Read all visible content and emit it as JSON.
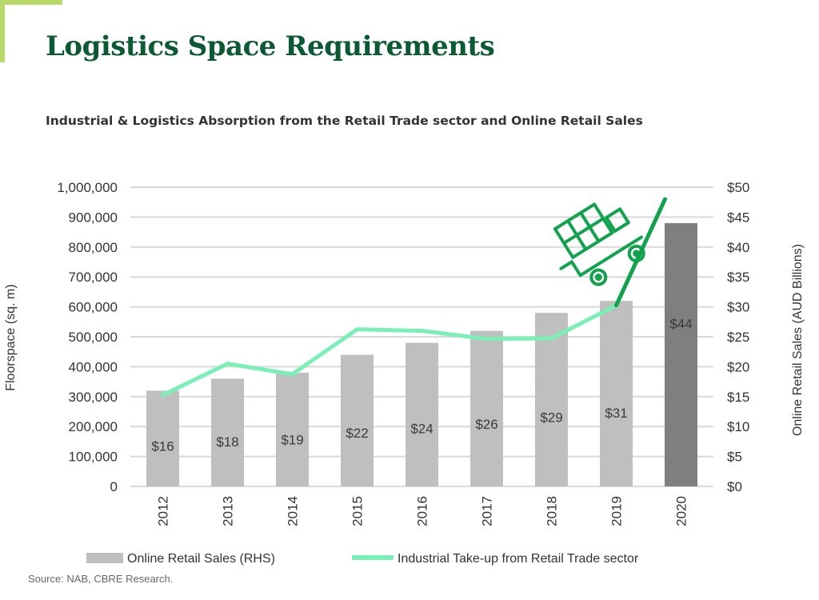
{
  "page": {
    "title": "Logistics Space Requirements",
    "subtitle": "Industrial & Logistics Absorption from the Retail Trade sector and Online Retail Sales",
    "source": "Source: NAB, CBRE Research."
  },
  "colors": {
    "title": "#0b5a34",
    "accent_corner": "#b7d96b",
    "bar": "#bfbfbf",
    "bar_highlight": "#7f7f7f",
    "line": "#7af0b7",
    "forecast_line": "#10a24c",
    "gridline": "#d9d9d9",
    "cart_icon": "#10a24c"
  },
  "chart_data": {
    "type": "bar",
    "categories": [
      "2012",
      "2013",
      "2014",
      "2015",
      "2016",
      "2017",
      "2018",
      "2019",
      "2020"
    ],
    "ylabel": "Floorspace (sq. m)",
    "y2label": "Online Retail Sales (AUD Billions)",
    "ylim": [
      0,
      1000000
    ],
    "y2lim": [
      0,
      50
    ],
    "y_ticks": [
      "0",
      "100,000",
      "200,000",
      "300,000",
      "400,000",
      "500,000",
      "600,000",
      "700,000",
      "800,000",
      "900,000",
      "1,000,000"
    ],
    "y2_ticks": [
      "$0",
      "$5",
      "$10",
      "$15",
      "$20",
      "$25",
      "$30",
      "$35",
      "$40",
      "$45",
      "$50"
    ],
    "grid": true,
    "legend_position": "bottom",
    "series": [
      {
        "name": "Online Retail Sales (RHS)",
        "type": "bar",
        "axis": "right",
        "values": [
          16,
          18,
          19,
          22,
          24,
          26,
          29,
          31,
          44
        ],
        "labels": [
          "$16",
          "$18",
          "$19",
          "$22",
          "$24",
          "$26",
          "$29",
          "$31",
          "$44"
        ],
        "highlight_index": 8
      },
      {
        "name": "Industrial Take-up from Retail Trade sector",
        "type": "line",
        "axis": "left",
        "values": [
          305000,
          410000,
          375000,
          525000,
          520000,
          493000,
          495000,
          605000,
          null
        ],
        "forecast_to": {
          "x": "2020",
          "y": 960000
        }
      }
    ],
    "annotations": [
      {
        "type": "icon",
        "name": "shopping-cart-icon"
      }
    ]
  }
}
